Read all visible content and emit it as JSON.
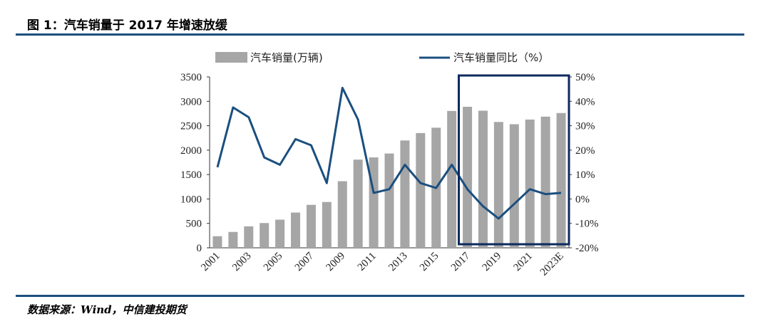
{
  "header": {
    "title": "图 1：汽车销量于 2017 年增速放缓"
  },
  "footer": {
    "source": "数据来源：Wind，中信建投期货"
  },
  "colors": {
    "bar": "#a6a6a6",
    "line": "#1b4f7f",
    "highlight_box": "#0d2a5e",
    "rule": "#1b4f7f"
  },
  "chart_data": {
    "type": "bar+line",
    "categories": [
      "2001",
      "2002",
      "2003",
      "2004",
      "2005",
      "2006",
      "2007",
      "2008",
      "2009",
      "2010",
      "2011",
      "2012",
      "2013",
      "2014",
      "2015",
      "2016",
      "2017",
      "2018",
      "2019",
      "2020",
      "2021",
      "2022",
      "2023E"
    ],
    "x_tick_labels": [
      "2001",
      "",
      "2003",
      "",
      "2005",
      "",
      "2007",
      "",
      "2009",
      "",
      "2011",
      "",
      "2013",
      "",
      "2015",
      "",
      "2017",
      "",
      "2019",
      "",
      "2021",
      "",
      "2023E"
    ],
    "series": [
      {
        "name": "汽车销量(万辆)",
        "type": "bar",
        "axis": "left",
        "values": [
          237,
          325,
          439,
          507,
          576,
          722,
          880,
          938,
          1364,
          1806,
          1851,
          1931,
          2198,
          2350,
          2460,
          2803,
          2888,
          2808,
          2577,
          2531,
          2627,
          2686,
          2760
        ]
      },
      {
        "name": "汽车销量同比（%）",
        "type": "line",
        "axis": "right",
        "values": [
          13,
          37.5,
          33.5,
          17,
          14,
          24.5,
          22,
          6.5,
          45.5,
          32.5,
          2.5,
          4,
          14,
          6.5,
          4.5,
          14,
          4,
          -3,
          -8,
          -2,
          4,
          2,
          2.5
        ]
      }
    ],
    "y_left": {
      "min": 0,
      "max": 3500,
      "ticks": [
        "0",
        "500",
        "1000",
        "1500",
        "2000",
        "2500",
        "3000",
        "3500"
      ]
    },
    "y_right": {
      "min": -20,
      "max": 50,
      "ticks": [
        "-20%",
        "-10%",
        "0%",
        "10%",
        "20%",
        "30%",
        "40%",
        "50%"
      ]
    },
    "highlight": {
      "from_category": "2017",
      "to_category": "2023E"
    },
    "legend": {
      "position": "top"
    },
    "grid": false
  }
}
